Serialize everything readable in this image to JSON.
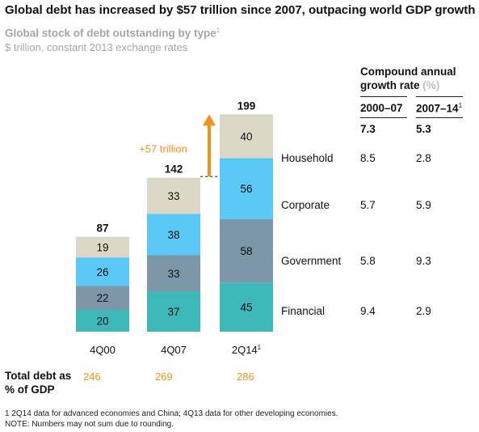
{
  "title": "Global debt has increased by $57 trillion since 2007, outpacing world GDP growth",
  "subtitle": "Global stock of debt outstanding by type",
  "subtitle_sup": "1",
  "subtitle2": "$ trillion, constant 2013 exchange rates",
  "cagr": {
    "title": "Compound annual growth rate",
    "unit": "(%)",
    "col1": "2000–07",
    "col2": "2007–14",
    "col2_sup": "1",
    "totals": [
      "7.3",
      "5.3"
    ],
    "rows": [
      {
        "label": "Household",
        "v1": "8.5",
        "v2": "2.8"
      },
      {
        "label": "Corporate",
        "v1": "5.7",
        "v2": "5.9"
      },
      {
        "label": "Government",
        "v1": "5.8",
        "v2": "9.3"
      },
      {
        "label": "Financial",
        "v1": "9.4",
        "v2": "2.9"
      }
    ]
  },
  "growth_annotation": "+57 trillion",
  "total_debt_label": "Total debt as % of GDP",
  "total_debt_values": [
    "246",
    "269",
    "286"
  ],
  "footnote1": "1  2Q14 data for advanced economies and China; 4Q13 data for other developing economies.",
  "footnote2": "NOTE: Numbers may not sum due to rounding.",
  "colors": {
    "household": "#dcd8c8",
    "corporate": "#5bc8f5",
    "government": "#7d97a8",
    "financial": "#3eb7b8",
    "accent": "#f0921b"
  },
  "chart_data": {
    "type": "bar",
    "stacked": true,
    "categories": [
      "4Q00",
      "4Q07",
      "2Q14"
    ],
    "category_sups": [
      "",
      "",
      "1"
    ],
    "series": [
      {
        "name": "Financial",
        "values": [
          20,
          37,
          45
        ]
      },
      {
        "name": "Government",
        "values": [
          22,
          33,
          58
        ]
      },
      {
        "name": "Corporate",
        "values": [
          26,
          38,
          56
        ]
      },
      {
        "name": "Household",
        "values": [
          19,
          33,
          40
        ]
      }
    ],
    "totals": [
      87,
      142,
      199
    ],
    "title": "Global stock of debt outstanding by type",
    "ylabel": "$ trillion, constant 2013 exchange rates"
  }
}
